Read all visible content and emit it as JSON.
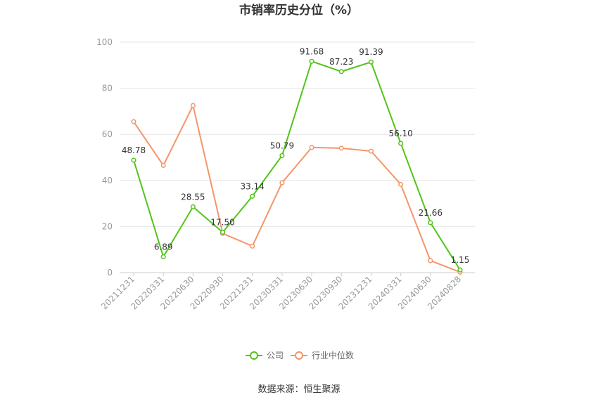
{
  "chart_data": {
    "type": "line",
    "title": "市销率历史分位（%）",
    "categories": [
      "20211231",
      "20220331",
      "20220630",
      "20220930",
      "20221231",
      "20230331",
      "20230630",
      "20230930",
      "20231231",
      "20240331",
      "20240630",
      "20240828"
    ],
    "ylim": [
      0,
      100
    ],
    "yticks": [
      0,
      20,
      40,
      60,
      80,
      100
    ],
    "grid": true,
    "legend_position": "bottom",
    "series": [
      {
        "name": "公司",
        "color": "#52c41a",
        "values": [
          48.78,
          6.89,
          28.55,
          17.5,
          33.14,
          50.79,
          91.68,
          87.23,
          91.39,
          56.1,
          21.66,
          1.15
        ],
        "labels": [
          "48.78",
          "6.89",
          "28.55",
          "17.50",
          "33.14",
          "50.79",
          "91.68",
          "87.23",
          "91.39",
          "56.10",
          "21.66",
          "1.15"
        ]
      },
      {
        "name": "行业中位数",
        "color": "#f4956a",
        "values": [
          65.5,
          46.5,
          72.5,
          17.0,
          11.5,
          39.0,
          54.3,
          54.0,
          52.7,
          38.3,
          5.2,
          0.2
        ]
      }
    ]
  },
  "source": "数据来源：恒生聚源"
}
